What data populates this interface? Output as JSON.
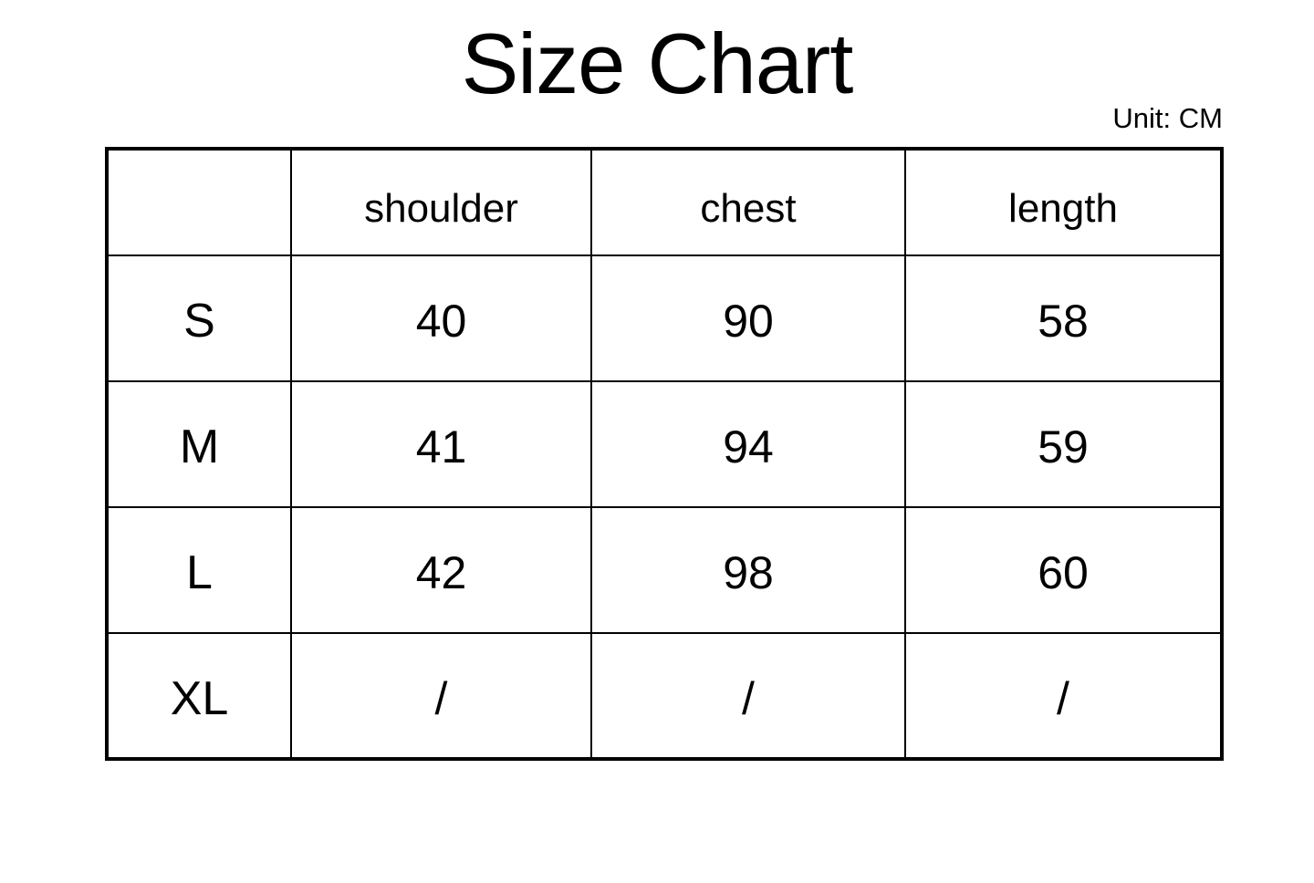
{
  "title": "Size Chart",
  "unit_label": "Unit: CM",
  "colors": {
    "background": "#ffffff",
    "text": "#000000",
    "border": "#000000"
  },
  "chart_data": {
    "type": "table",
    "title": "Size Chart",
    "unit": "CM",
    "columns": [
      "",
      "shoulder",
      "chest",
      "length"
    ],
    "rows": [
      {
        "size": "S",
        "shoulder": "40",
        "chest": "90",
        "length": "58"
      },
      {
        "size": "M",
        "shoulder": "41",
        "chest": "94",
        "length": "59"
      },
      {
        "size": "L",
        "shoulder": "42",
        "chest": "98",
        "length": "60"
      },
      {
        "size": "XL",
        "shoulder": "/",
        "chest": "/",
        "length": "/"
      }
    ]
  }
}
